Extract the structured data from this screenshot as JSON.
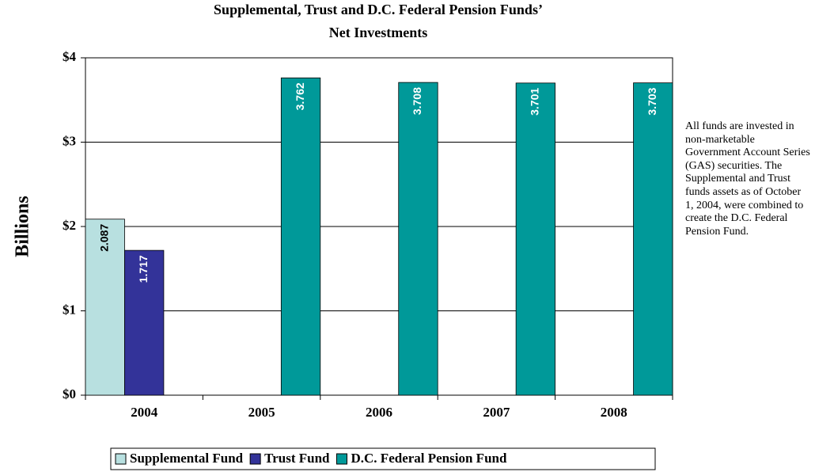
{
  "chart_data": {
    "type": "bar",
    "title": [
      "Supplemental, Trust and D.C. Federal Pension Funds’",
      "Net Investments"
    ],
    "y_label": "Billions",
    "annotation": "All funds are invested in non-marketable Government Account Series (GAS) securities. The Supplemental and Trust funds assets as of October 1, 2004, were combined to create the D.C. Federal Pension Fund.",
    "categories": [
      "2004",
      "2005",
      "2006",
      "2007",
      "2008"
    ],
    "series": [
      {
        "name": "Supplemental Fund",
        "color": "#b8e0e0",
        "values": [
          2.087,
          null,
          null,
          null,
          null
        ]
      },
      {
        "name": "Trust Fund",
        "color": "#333399",
        "values": [
          1.717,
          null,
          null,
          null,
          null
        ]
      },
      {
        "name": "D.C. Federal Pension Fund",
        "color": "#009999",
        "values": [
          null,
          3.762,
          3.708,
          3.701,
          3.703
        ]
      }
    ],
    "ylim": [
      0,
      4
    ],
    "yticks": [
      {
        "value": 0,
        "label": "$0"
      },
      {
        "value": 1,
        "label": "$1"
      },
      {
        "value": 2,
        "label": "$2"
      },
      {
        "value": 3,
        "label": "$3"
      },
      {
        "value": 4,
        "label": "$4"
      }
    ],
    "grid": true
  }
}
